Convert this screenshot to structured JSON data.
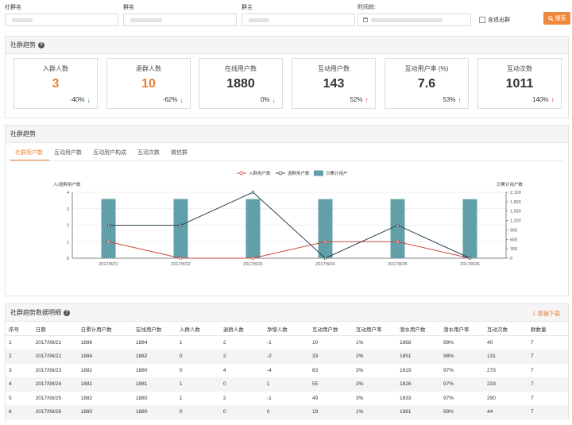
{
  "filters": {
    "community_name_label": "社群名",
    "group_name_label": "群名",
    "owner_label": "群主",
    "time_label": "时间段:",
    "quit_group_label": "含退出群",
    "search_label": "搜索"
  },
  "trend_summary": {
    "title": "社群趋势",
    "cards": [
      {
        "title": "入群人数",
        "value": "3",
        "change": "-40%",
        "direction": "down",
        "highlight": "orange"
      },
      {
        "title": "退群人数",
        "value": "10",
        "change": "-62%",
        "direction": "down",
        "highlight": "orange"
      },
      {
        "title": "在线用户数",
        "value": "1880",
        "change": "0%",
        "direction": "down",
        "highlight": "none"
      },
      {
        "title": "互动用户数",
        "value": "143",
        "change": "52%",
        "direction": "up",
        "highlight": "none"
      },
      {
        "title": "互动用户率 (%)",
        "value": "7.6",
        "change": "53%",
        "direction": "up",
        "highlight": "none"
      },
      {
        "title": "互动次数",
        "value": "1011",
        "change": "140%",
        "direction": "up",
        "highlight": "none"
      }
    ]
  },
  "trend_chart_panel": {
    "title": "社群趋势",
    "tabs": [
      "社群用户数",
      "互动用户数",
      "互动用户构成",
      "互动次数",
      "微信群"
    ],
    "active_tab": 0
  },
  "chart_data": {
    "type": "bar",
    "categories": [
      "2017/8/21",
      "2017/8/22",
      "2017/8/23",
      "2017/8/24",
      "2017/8/25",
      "2017/8/26"
    ],
    "ylabel": "入/退群用户数",
    "y2label": "日累计用户数",
    "ylim": [
      0,
      4
    ],
    "y2lim": [
      0,
      2100
    ],
    "yticks": [
      0,
      1,
      2,
      3,
      4
    ],
    "y2ticks": [
      "0",
      "300",
      "600",
      "900",
      "1,200",
      "1,500",
      "1,800",
      "2,100"
    ],
    "legend_position": "top",
    "series": [
      {
        "name": "入群用户数",
        "type": "line",
        "axis": "left",
        "color": "#c9483c",
        "values": [
          1,
          0,
          0,
          1,
          1,
          0
        ]
      },
      {
        "name": "退群用户数",
        "type": "line",
        "axis": "left",
        "color": "#2f4554",
        "values": [
          2,
          2,
          4,
          0,
          2,
          0
        ]
      },
      {
        "name": "日累计用户",
        "type": "bar",
        "axis": "right",
        "color": "#61a0a8",
        "values": [
          1886,
          1884,
          1882,
          1881,
          1882,
          1880
        ]
      }
    ]
  },
  "detail_table": {
    "title": "社群趋势数据明细",
    "download_label": "数据下载",
    "headers": [
      "序号",
      "日期",
      "日累计用户数",
      "在线用户数",
      "入群人数",
      "退群人数",
      "净增人数",
      "互动用户数",
      "互动用户率",
      "潜水用户数",
      "潜水用户率",
      "互动次数",
      "群数量"
    ],
    "rows": [
      [
        "1",
        "2017/08/21",
        "1886",
        "1884",
        "1",
        "2",
        "-1",
        "10",
        "1%",
        "1868",
        "99%",
        "40",
        "7"
      ],
      [
        "2",
        "2017/08/22",
        "1884",
        "1882",
        "0",
        "2",
        "-2",
        "33",
        "2%",
        "1851",
        "98%",
        "131",
        "7"
      ],
      [
        "3",
        "2017/08/23",
        "1882",
        "1880",
        "0",
        "4",
        "-4",
        "63",
        "3%",
        "1819",
        "97%",
        "273",
        "7"
      ],
      [
        "4",
        "2017/08/24",
        "1881",
        "1881",
        "1",
        "0",
        "1",
        "55",
        "3%",
        "1826",
        "97%",
        "233",
        "7"
      ],
      [
        "5",
        "2017/08/25",
        "1882",
        "1880",
        "1",
        "2",
        "-1",
        "49",
        "3%",
        "1833",
        "97%",
        "290",
        "7"
      ],
      [
        "6",
        "2017/08/26",
        "1880",
        "1880",
        "0",
        "0",
        "0",
        "19",
        "1%",
        "1861",
        "99%",
        "44",
        "7"
      ]
    ]
  }
}
